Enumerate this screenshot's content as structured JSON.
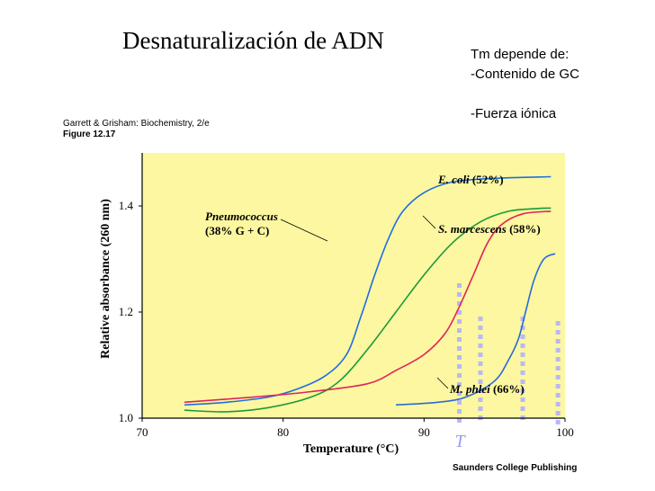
{
  "slide": {
    "title": "Desnaturalización de ADN",
    "notes": [
      "Tm depende de:",
      "-Contenido de GC",
      "",
      "-Fuerza iónica"
    ],
    "credit_line1": "Garrett & Grisham: Biochemistry, 2/e",
    "credit_line2": "Figure 12.17",
    "publisher": "Saunders College Publishing"
  },
  "colors": {
    "plot_background": "#fcf7a0",
    "ecoli": "#1f6fe0",
    "pneumococcus": "#1a9a3a",
    "smarcescens": "#e0245a",
    "mphlei": "#2a6ad8",
    "tm_marker": "#b8b8f6"
  },
  "chart_data": {
    "type": "line",
    "xlabel": "Temperature (°C)",
    "ylabel": "Relative absorbance (260 nm)",
    "xlim": [
      70,
      100
    ],
    "ylim": [
      1.0,
      1.5
    ],
    "xticks": [
      "70",
      "80",
      "90",
      "100"
    ],
    "yticks": [
      "1.0",
      "1.2",
      "1.4"
    ],
    "tm_marker_label": "T",
    "tm_markers": [
      92.5,
      94.0,
      97.0,
      99.5
    ],
    "series": [
      {
        "name": "E. coli",
        "annotation_name": "E. coli",
        "annotation_pct": "(52%)",
        "color_key": "ecoli",
        "x": [
          73,
          76,
          79,
          81,
          83,
          84.5,
          85.5,
          86.5,
          87.5,
          88.5,
          90,
          92,
          95,
          99
        ],
        "y": [
          1.025,
          1.03,
          1.04,
          1.055,
          1.08,
          1.12,
          1.19,
          1.27,
          1.34,
          1.39,
          1.425,
          1.445,
          1.452,
          1.455
        ]
      },
      {
        "name": "Pneumococcus",
        "annotation_name": "Pneumococcus",
        "annotation_pct": "(38% G + C)",
        "color_key": "pneumococcus",
        "x": [
          73,
          76,
          79,
          82,
          84,
          86,
          88,
          90,
          92,
          94,
          96,
          98,
          99
        ],
        "y": [
          1.015,
          1.012,
          1.02,
          1.04,
          1.07,
          1.13,
          1.2,
          1.27,
          1.33,
          1.37,
          1.39,
          1.395,
          1.396
        ]
      },
      {
        "name": "S. marcescens",
        "annotation_name": "S. marcescens",
        "annotation_pct": "(58%)",
        "color_key": "smarcescens",
        "x": [
          73,
          78,
          82,
          86,
          88,
          90,
          91.5,
          92.5,
          93.5,
          94.5,
          95.5,
          97,
          99
        ],
        "y": [
          1.03,
          1.04,
          1.05,
          1.065,
          1.09,
          1.12,
          1.16,
          1.21,
          1.27,
          1.33,
          1.365,
          1.385,
          1.39
        ]
      },
      {
        "name": "M. phlei",
        "annotation_name": "M. phlei",
        "annotation_pct": "(66%)",
        "color_key": "mphlei",
        "x": [
          88,
          91,
          93,
          95,
          96,
          96.7,
          97.2,
          97.8,
          98.5,
          99.3
        ],
        "y": [
          1.025,
          1.03,
          1.04,
          1.07,
          1.11,
          1.15,
          1.2,
          1.26,
          1.3,
          1.31
        ]
      }
    ]
  }
}
